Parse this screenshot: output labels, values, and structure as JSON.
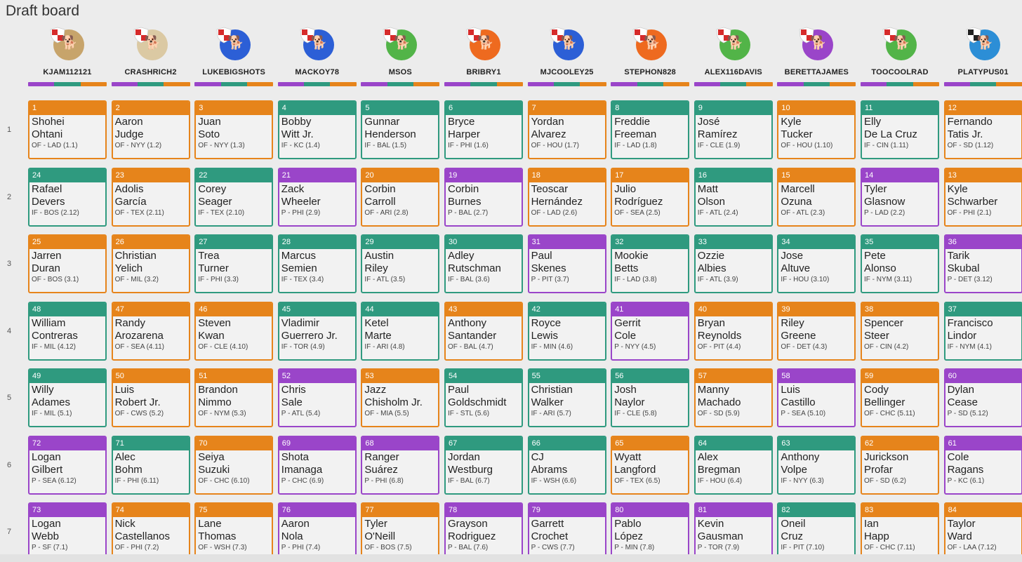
{
  "page": {
    "title": "Draft board"
  },
  "colors": {
    "OF": "#e6841b",
    "IF": "#2f9a7f",
    "P": "#9a45c9"
  },
  "teams": [
    {
      "name": "KJAM112121",
      "avatar_bg": "#c7a46b",
      "shield": "#d62b2b"
    },
    {
      "name": "CRASHRICH2",
      "avatar_bg": "#dbc9a3",
      "shield": "#d62b2b"
    },
    {
      "name": "LUKEBIGSHOTS",
      "avatar_bg": "#2c5fd6",
      "shield": "#d62b2b"
    },
    {
      "name": "MACKOY78",
      "avatar_bg": "#2c5fd6",
      "shield": "#d62b2b"
    },
    {
      "name": "MSOS",
      "avatar_bg": "#52b448",
      "shield": "#d62b2b"
    },
    {
      "name": "BRIBRY1",
      "avatar_bg": "#ee6a1f",
      "shield": "#d62b2b"
    },
    {
      "name": "MJCOOLEY25",
      "avatar_bg": "#2c5fd6",
      "shield": "#d62b2b"
    },
    {
      "name": "STEPHON828",
      "avatar_bg": "#ee6a1f",
      "shield": "#d62b2b"
    },
    {
      "name": "ALEX116DAVIS",
      "avatar_bg": "#52b448",
      "shield": "#d62b2b"
    },
    {
      "name": "BERETTAJAMES",
      "avatar_bg": "#9a45c9",
      "shield": "#d62b2b"
    },
    {
      "name": "TOOCOOLRAD",
      "avatar_bg": "#52b448",
      "shield": "#d62b2b"
    },
    {
      "name": "PLATYPUS01",
      "avatar_bg": "#2c8ed6",
      "shield": "#222222"
    }
  ],
  "rounds": [
    {
      "number": "1",
      "picks": [
        {
          "num": "1",
          "first": "Shohei",
          "last": "Ohtani",
          "meta": "OF - LAD (1.1)",
          "pos": "OF"
        },
        {
          "num": "2",
          "first": "Aaron",
          "last": "Judge",
          "meta": "OF - NYY (1.2)",
          "pos": "OF"
        },
        {
          "num": "3",
          "first": "Juan",
          "last": "Soto",
          "meta": "OF - NYY (1.3)",
          "pos": "OF"
        },
        {
          "num": "4",
          "first": "Bobby",
          "last": "Witt Jr.",
          "meta": "IF - KC (1.4)",
          "pos": "IF"
        },
        {
          "num": "5",
          "first": "Gunnar",
          "last": "Henderson",
          "meta": "IF - BAL (1.5)",
          "pos": "IF"
        },
        {
          "num": "6",
          "first": "Bryce",
          "last": "Harper",
          "meta": "IF - PHI (1.6)",
          "pos": "IF"
        },
        {
          "num": "7",
          "first": "Yordan",
          "last": "Alvarez",
          "meta": "OF - HOU (1.7)",
          "pos": "OF"
        },
        {
          "num": "8",
          "first": "Freddie",
          "last": "Freeman",
          "meta": "IF - LAD (1.8)",
          "pos": "IF"
        },
        {
          "num": "9",
          "first": "José",
          "last": "Ramírez",
          "meta": "IF - CLE (1.9)",
          "pos": "IF"
        },
        {
          "num": "10",
          "first": "Kyle",
          "last": "Tucker",
          "meta": "OF - HOU (1.10)",
          "pos": "OF"
        },
        {
          "num": "11",
          "first": "Elly",
          "last": "De La Cruz",
          "meta": "IF - CIN (1.11)",
          "pos": "IF"
        },
        {
          "num": "12",
          "first": "Fernando",
          "last": "Tatis Jr.",
          "meta": "OF - SD (1.12)",
          "pos": "OF"
        }
      ]
    },
    {
      "number": "2",
      "picks": [
        {
          "num": "24",
          "first": "Rafael",
          "last": "Devers",
          "meta": "IF - BOS (2.12)",
          "pos": "IF"
        },
        {
          "num": "23",
          "first": "Adolis",
          "last": "García",
          "meta": "OF - TEX (2.11)",
          "pos": "OF"
        },
        {
          "num": "22",
          "first": "Corey",
          "last": "Seager",
          "meta": "IF - TEX (2.10)",
          "pos": "IF"
        },
        {
          "num": "21",
          "first": "Zack",
          "last": "Wheeler",
          "meta": "P - PHI (2.9)",
          "pos": "P"
        },
        {
          "num": "20",
          "first": "Corbin",
          "last": "Carroll",
          "meta": "OF - ARI (2.8)",
          "pos": "OF"
        },
        {
          "num": "19",
          "first": "Corbin",
          "last": "Burnes",
          "meta": "P - BAL (2.7)",
          "pos": "P"
        },
        {
          "num": "18",
          "first": "Teoscar",
          "last": "Hernández",
          "meta": "OF - LAD (2.6)",
          "pos": "OF"
        },
        {
          "num": "17",
          "first": "Julio",
          "last": "Rodríguez",
          "meta": "OF - SEA (2.5)",
          "pos": "OF"
        },
        {
          "num": "16",
          "first": "Matt",
          "last": "Olson",
          "meta": "IF - ATL (2.4)",
          "pos": "IF"
        },
        {
          "num": "15",
          "first": "Marcell",
          "last": "Ozuna",
          "meta": "OF - ATL (2.3)",
          "pos": "OF"
        },
        {
          "num": "14",
          "first": "Tyler",
          "last": "Glasnow",
          "meta": "P - LAD (2.2)",
          "pos": "P"
        },
        {
          "num": "13",
          "first": "Kyle",
          "last": "Schwarber",
          "meta": "OF - PHI (2.1)",
          "pos": "OF"
        }
      ]
    },
    {
      "number": "3",
      "picks": [
        {
          "num": "25",
          "first": "Jarren",
          "last": "Duran",
          "meta": "OF - BOS (3.1)",
          "pos": "OF"
        },
        {
          "num": "26",
          "first": "Christian",
          "last": "Yelich",
          "meta": "OF - MIL (3.2)",
          "pos": "OF"
        },
        {
          "num": "27",
          "first": "Trea",
          "last": "Turner",
          "meta": "IF - PHI (3.3)",
          "pos": "IF"
        },
        {
          "num": "28",
          "first": "Marcus",
          "last": "Semien",
          "meta": "IF - TEX (3.4)",
          "pos": "IF"
        },
        {
          "num": "29",
          "first": "Austin",
          "last": "Riley",
          "meta": "IF - ATL (3.5)",
          "pos": "IF"
        },
        {
          "num": "30",
          "first": "Adley",
          "last": "Rutschman",
          "meta": "IF - BAL (3.6)",
          "pos": "IF"
        },
        {
          "num": "31",
          "first": "Paul",
          "last": "Skenes",
          "meta": "P - PIT (3.7)",
          "pos": "P"
        },
        {
          "num": "32",
          "first": "Mookie",
          "last": "Betts",
          "meta": "IF - LAD (3.8)",
          "pos": "IF"
        },
        {
          "num": "33",
          "first": "Ozzie",
          "last": "Albies",
          "meta": "IF - ATL (3.9)",
          "pos": "IF"
        },
        {
          "num": "34",
          "first": "Jose",
          "last": "Altuve",
          "meta": "IF - HOU (3.10)",
          "pos": "IF"
        },
        {
          "num": "35",
          "first": "Pete",
          "last": "Alonso",
          "meta": "IF - NYM (3.11)",
          "pos": "IF"
        },
        {
          "num": "36",
          "first": "Tarik",
          "last": "Skubal",
          "meta": "P - DET (3.12)",
          "pos": "P"
        }
      ]
    },
    {
      "number": "4",
      "picks": [
        {
          "num": "48",
          "first": "William",
          "last": "Contreras",
          "meta": "IF - MIL (4.12)",
          "pos": "IF"
        },
        {
          "num": "47",
          "first": "Randy",
          "last": "Arozarena",
          "meta": "OF - SEA (4.11)",
          "pos": "OF"
        },
        {
          "num": "46",
          "first": "Steven",
          "last": "Kwan",
          "meta": "OF - CLE (4.10)",
          "pos": "OF"
        },
        {
          "num": "45",
          "first": "Vladimir",
          "last": "Guerrero Jr.",
          "meta": "IF - TOR (4.9)",
          "pos": "IF"
        },
        {
          "num": "44",
          "first": "Ketel",
          "last": "Marte",
          "meta": "IF - ARI (4.8)",
          "pos": "IF"
        },
        {
          "num": "43",
          "first": "Anthony",
          "last": "Santander",
          "meta": "OF - BAL (4.7)",
          "pos": "OF"
        },
        {
          "num": "42",
          "first": "Royce",
          "last": "Lewis",
          "meta": "IF - MIN (4.6)",
          "pos": "IF"
        },
        {
          "num": "41",
          "first": "Gerrit",
          "last": "Cole",
          "meta": "P - NYY (4.5)",
          "pos": "P"
        },
        {
          "num": "40",
          "first": "Bryan",
          "last": "Reynolds",
          "meta": "OF - PIT (4.4)",
          "pos": "OF"
        },
        {
          "num": "39",
          "first": "Riley",
          "last": "Greene",
          "meta": "OF - DET (4.3)",
          "pos": "OF"
        },
        {
          "num": "38",
          "first": "Spencer",
          "last": "Steer",
          "meta": "OF - CIN (4.2)",
          "pos": "OF"
        },
        {
          "num": "37",
          "first": "Francisco",
          "last": "Lindor",
          "meta": "IF - NYM (4.1)",
          "pos": "IF"
        }
      ]
    },
    {
      "number": "5",
      "picks": [
        {
          "num": "49",
          "first": "Willy",
          "last": "Adames",
          "meta": "IF - MIL (5.1)",
          "pos": "IF"
        },
        {
          "num": "50",
          "first": "Luis",
          "last": "Robert Jr.",
          "meta": "OF - CWS (5.2)",
          "pos": "OF"
        },
        {
          "num": "51",
          "first": "Brandon",
          "last": "Nimmo",
          "meta": "OF - NYM (5.3)",
          "pos": "OF"
        },
        {
          "num": "52",
          "first": "Chris",
          "last": "Sale",
          "meta": "P - ATL (5.4)",
          "pos": "P"
        },
        {
          "num": "53",
          "first": "Jazz",
          "last": "Chisholm Jr.",
          "meta": "OF - MIA (5.5)",
          "pos": "OF"
        },
        {
          "num": "54",
          "first": "Paul",
          "last": "Goldschmidt",
          "meta": "IF - STL (5.6)",
          "pos": "IF"
        },
        {
          "num": "55",
          "first": "Christian",
          "last": "Walker",
          "meta": "IF - ARI (5.7)",
          "pos": "IF"
        },
        {
          "num": "56",
          "first": "Josh",
          "last": "Naylor",
          "meta": "IF - CLE (5.8)",
          "pos": "IF"
        },
        {
          "num": "57",
          "first": "Manny",
          "last": "Machado",
          "meta": "OF - SD (5.9)",
          "pos": "OF"
        },
        {
          "num": "58",
          "first": "Luis",
          "last": "Castillo",
          "meta": "P - SEA (5.10)",
          "pos": "P"
        },
        {
          "num": "59",
          "first": "Cody",
          "last": "Bellinger",
          "meta": "OF - CHC (5.11)",
          "pos": "OF"
        },
        {
          "num": "60",
          "first": "Dylan",
          "last": "Cease",
          "meta": "P - SD (5.12)",
          "pos": "P"
        }
      ]
    },
    {
      "number": "6",
      "picks": [
        {
          "num": "72",
          "first": "Logan",
          "last": "Gilbert",
          "meta": "P - SEA (6.12)",
          "pos": "P"
        },
        {
          "num": "71",
          "first": "Alec",
          "last": "Bohm",
          "meta": "IF - PHI (6.11)",
          "pos": "IF"
        },
        {
          "num": "70",
          "first": "Seiya",
          "last": "Suzuki",
          "meta": "OF - CHC (6.10)",
          "pos": "OF"
        },
        {
          "num": "69",
          "first": "Shota",
          "last": "Imanaga",
          "meta": "P - CHC (6.9)",
          "pos": "P"
        },
        {
          "num": "68",
          "first": "Ranger",
          "last": "Suárez",
          "meta": "P - PHI (6.8)",
          "pos": "P"
        },
        {
          "num": "67",
          "first": "Jordan",
          "last": "Westburg",
          "meta": "IF - BAL (6.7)",
          "pos": "IF"
        },
        {
          "num": "66",
          "first": "CJ",
          "last": "Abrams",
          "meta": "IF - WSH (6.6)",
          "pos": "IF"
        },
        {
          "num": "65",
          "first": "Wyatt",
          "last": "Langford",
          "meta": "OF - TEX (6.5)",
          "pos": "OF"
        },
        {
          "num": "64",
          "first": "Alex",
          "last": "Bregman",
          "meta": "IF - HOU (6.4)",
          "pos": "IF"
        },
        {
          "num": "63",
          "first": "Anthony",
          "last": "Volpe",
          "meta": "IF - NYY (6.3)",
          "pos": "IF"
        },
        {
          "num": "62",
          "first": "Jurickson",
          "last": "Profar",
          "meta": "OF - SD (6.2)",
          "pos": "OF"
        },
        {
          "num": "61",
          "first": "Cole",
          "last": "Ragans",
          "meta": "P - KC (6.1)",
          "pos": "P"
        }
      ]
    },
    {
      "number": "7",
      "picks": [
        {
          "num": "73",
          "first": "Logan",
          "last": "Webb",
          "meta": "P - SF (7.1)",
          "pos": "P"
        },
        {
          "num": "74",
          "first": "Nick",
          "last": "Castellanos",
          "meta": "OF - PHI (7.2)",
          "pos": "OF"
        },
        {
          "num": "75",
          "first": "Lane",
          "last": "Thomas",
          "meta": "OF - WSH (7.3)",
          "pos": "OF"
        },
        {
          "num": "76",
          "first": "Aaron",
          "last": "Nola",
          "meta": "P - PHI (7.4)",
          "pos": "P"
        },
        {
          "num": "77",
          "first": "Tyler",
          "last": "O'Neill",
          "meta": "OF - BOS (7.5)",
          "pos": "OF"
        },
        {
          "num": "78",
          "first": "Grayson",
          "last": "Rodriguez",
          "meta": "P - BAL (7.6)",
          "pos": "P"
        },
        {
          "num": "79",
          "first": "Garrett",
          "last": "Crochet",
          "meta": "P - CWS (7.7)",
          "pos": "P"
        },
        {
          "num": "80",
          "first": "Pablo",
          "last": "López",
          "meta": "P - MIN (7.8)",
          "pos": "P"
        },
        {
          "num": "81",
          "first": "Kevin",
          "last": "Gausman",
          "meta": "P - TOR (7.9)",
          "pos": "P"
        },
        {
          "num": "82",
          "first": "Oneil",
          "last": "Cruz",
          "meta": "IF - PIT (7.10)",
          "pos": "IF"
        },
        {
          "num": "83",
          "first": "Ian",
          "last": "Happ",
          "meta": "OF - CHC (7.11)",
          "pos": "OF"
        },
        {
          "num": "84",
          "first": "Taylor",
          "last": "Ward",
          "meta": "OF - LAA (7.12)",
          "pos": "OF"
        }
      ]
    }
  ]
}
